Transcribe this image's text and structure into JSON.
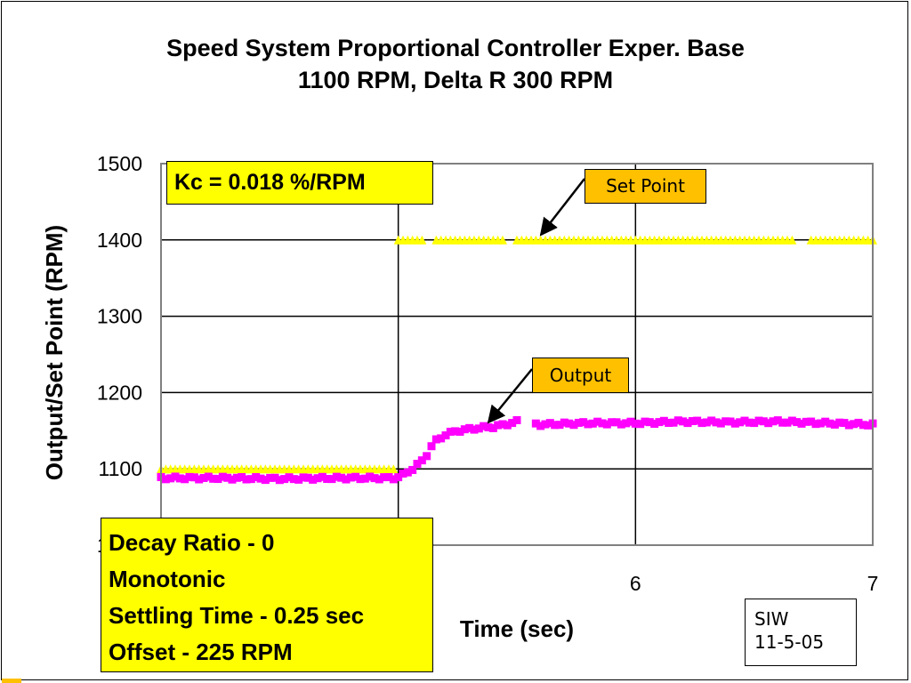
{
  "chart_data": {
    "type": "scatter",
    "title": [
      "Speed System Proportional Controller Exper. Base",
      "1100 RPM, Delta R 300 RPM"
    ],
    "xlabel": "Time (sec)",
    "ylabel": "Output/Set Point (RPM)",
    "xlim": [
      4,
      7
    ],
    "ylim": [
      1000,
      1500
    ],
    "x_ticks": [
      4,
      5,
      6,
      7
    ],
    "x_tick_labels": [
      "",
      "",
      "6",
      "7"
    ],
    "y_ticks": [
      1000,
      1100,
      1200,
      1300,
      1400,
      1500
    ],
    "y_tick_labels": [
      "1000",
      "1100",
      "1200",
      "1300",
      "1400",
      "1500"
    ],
    "grid": true,
    "legend": "none",
    "series": [
      {
        "name": "Set Point",
        "color": "#ffff00",
        "marker": "triangle",
        "points": [
          [
            4.0,
            1100
          ],
          [
            4.99,
            1100
          ],
          [
            5.0,
            1400
          ],
          [
            7.0,
            1400
          ]
        ],
        "gaps": [
          [
            5.11,
            5.15
          ],
          [
            5.44,
            5.49
          ],
          [
            6.67,
            6.72
          ]
        ]
      },
      {
        "name": "Output",
        "color": "#ff00ff",
        "marker": "square",
        "points": [
          [
            4.0,
            1088
          ],
          [
            4.25,
            1088
          ],
          [
            4.5,
            1087
          ],
          [
            4.75,
            1088
          ],
          [
            4.99,
            1088
          ],
          [
            5.02,
            1092
          ],
          [
            5.06,
            1100
          ],
          [
            5.11,
            1113
          ],
          [
            5.15,
            1135
          ],
          [
            5.2,
            1145
          ],
          [
            5.25,
            1150
          ],
          [
            5.3,
            1152
          ],
          [
            5.35,
            1154
          ],
          [
            5.4,
            1155
          ],
          [
            5.45,
            1158
          ],
          [
            5.5,
            1162
          ],
          [
            5.6,
            1158
          ],
          [
            5.8,
            1160
          ],
          [
            6.0,
            1160
          ],
          [
            6.2,
            1162
          ],
          [
            6.4,
            1161
          ],
          [
            6.6,
            1162
          ],
          [
            6.8,
            1160
          ],
          [
            7.0,
            1158
          ]
        ],
        "gaps": [
          [
            5.51,
            5.56
          ]
        ]
      }
    ],
    "annotations": [
      {
        "text": "Kc = 0.018 %/RPM"
      },
      {
        "text": "Set Point",
        "target_series": "Set Point"
      },
      {
        "text": "Output",
        "target_series": "Output"
      },
      {
        "text": [
          "Decay Ratio - 0",
          "Monotonic",
          "Settling Time - 0.25 sec",
          "Offset - 225 RPM"
        ]
      },
      {
        "text": [
          "SIW",
          "11-5-05"
        ]
      }
    ]
  }
}
